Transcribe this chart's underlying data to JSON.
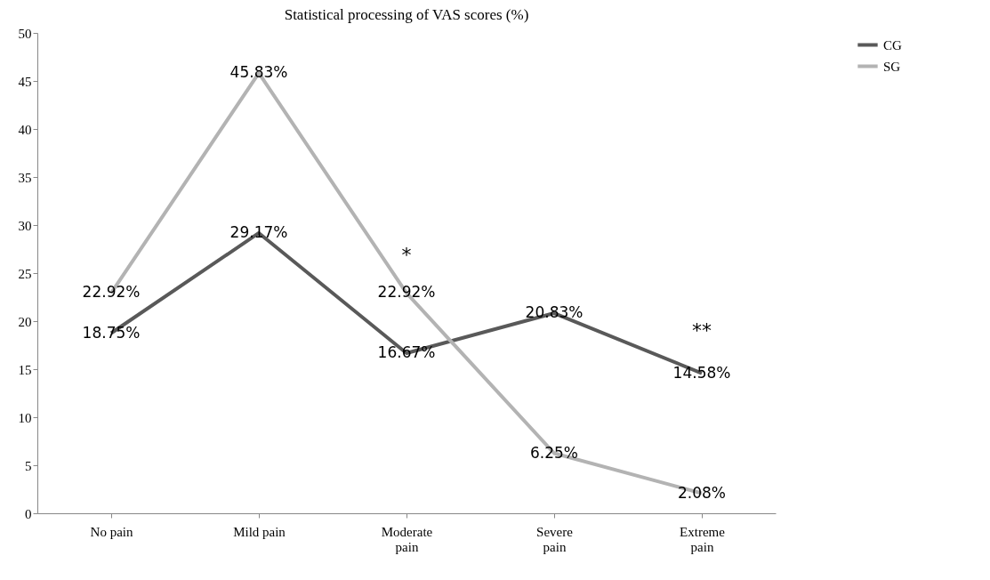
{
  "chart_data": {
    "type": "line",
    "title": "Statistical processing of VAS scores (%)",
    "categories": [
      "No pain",
      "Mild pain",
      "Moderate pain",
      "Severe pain",
      "Extreme pain"
    ],
    "series": [
      {
        "name": "CG",
        "color": "#595959",
        "values": [
          18.75,
          29.17,
          16.67,
          20.83,
          14.58
        ],
        "value_labels": [
          "18.75%",
          "29.17%",
          "16.67%",
          "20.83%",
          "14.58%"
        ]
      },
      {
        "name": "SG",
        "color": "#b3b3b3",
        "values": [
          22.92,
          45.83,
          22.92,
          6.25,
          2.08
        ],
        "value_labels": [
          "22.92%",
          "45.83%",
          "22.92%",
          "6.25%",
          "2.08%"
        ]
      }
    ],
    "ylim": [
      0,
      50
    ],
    "yticks": [
      0,
      5,
      10,
      15,
      20,
      25,
      30,
      35,
      40,
      45,
      50
    ],
    "annotations": [
      "*",
      "**"
    ],
    "legend": "right",
    "grid": false,
    "marker": "none",
    "line_style": "solid"
  }
}
